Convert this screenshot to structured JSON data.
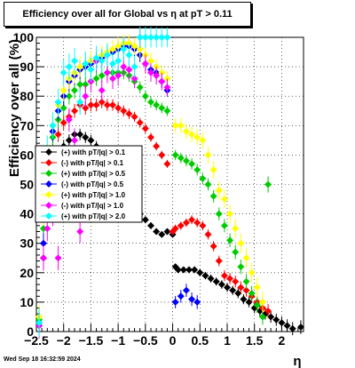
{
  "chart_data": {
    "type": "scatter",
    "title": "Efficiency over all for Global vs   η at pT > 0.11",
    "xlabel": "η",
    "ylabel": "Efficiency over all (%)",
    "xlim": [
      -2.5,
      2.4
    ],
    "ylim": [
      0,
      100
    ],
    "x_ticks": [
      "−2.5",
      "−2",
      "−1.5",
      "−1",
      "−0.5",
      "0",
      "0.5",
      "1",
      "1.5",
      "2"
    ],
    "y_ticks": [
      "0",
      "10",
      "20",
      "30",
      "40",
      "50",
      "60",
      "70",
      "80",
      "90",
      "100"
    ],
    "grid": true,
    "legend_position": "left-middle",
    "series": [
      {
        "name": "(+) with pT/|q| > 0.1",
        "color": "#000000",
        "points": [
          [
            -2.45,
            2
          ],
          [
            -2.37,
            25
          ],
          [
            -2.3,
            48
          ],
          [
            -2.2,
            57
          ],
          [
            -2.1,
            60
          ],
          [
            -2.0,
            63
          ],
          [
            -1.9,
            65
          ],
          [
            -1.8,
            67
          ],
          [
            -1.7,
            67
          ],
          [
            -1.6,
            66
          ],
          [
            -1.5,
            65
          ],
          [
            -1.4,
            63
          ],
          [
            -1.3,
            61
          ],
          [
            -1.2,
            58
          ],
          [
            -1.1,
            54
          ],
          [
            -1.0,
            51
          ],
          [
            -0.9,
            48
          ],
          [
            -0.8,
            45
          ],
          [
            -0.7,
            42
          ],
          [
            -0.6,
            40
          ],
          [
            -0.5,
            38
          ],
          [
            -0.4,
            36
          ],
          [
            -0.3,
            34
          ],
          [
            -0.2,
            33
          ],
          [
            -0.1,
            34
          ],
          [
            0.0,
            33
          ],
          [
            0.05,
            22
          ],
          [
            0.1,
            21
          ],
          [
            0.2,
            21
          ],
          [
            0.3,
            21
          ],
          [
            0.4,
            21
          ],
          [
            0.5,
            20
          ],
          [
            0.6,
            19
          ],
          [
            0.7,
            18
          ],
          [
            0.8,
            17
          ],
          [
            0.9,
            16
          ],
          [
            1.0,
            15
          ],
          [
            1.1,
            14
          ],
          [
            1.2,
            13
          ],
          [
            1.3,
            11
          ],
          [
            1.4,
            10
          ],
          [
            1.5,
            8
          ],
          [
            1.6,
            7
          ],
          [
            1.7,
            6
          ],
          [
            1.8,
            5
          ],
          [
            1.9,
            4
          ],
          [
            2.0,
            3
          ],
          [
            2.1,
            2
          ],
          [
            2.2,
            1
          ],
          [
            2.35,
            1.5
          ]
        ]
      },
      {
        "name": "(-) with pT/|q| > 0.1",
        "color": "#ff0000",
        "points": [
          [
            -2.45,
            3
          ],
          [
            -2.37,
            30
          ],
          [
            -2.3,
            52
          ],
          [
            -2.2,
            62
          ],
          [
            -2.1,
            67
          ],
          [
            -2.0,
            71
          ],
          [
            -1.9,
            73
          ],
          [
            -1.8,
            75
          ],
          [
            -1.7,
            77
          ],
          [
            -1.6,
            76
          ],
          [
            -1.5,
            77
          ],
          [
            -1.4,
            77
          ],
          [
            -1.3,
            78
          ],
          [
            -1.2,
            77
          ],
          [
            -1.1,
            77
          ],
          [
            -1.0,
            76
          ],
          [
            -0.9,
            75
          ],
          [
            -0.8,
            74
          ],
          [
            -0.7,
            73
          ],
          [
            -0.6,
            71
          ],
          [
            -0.5,
            69
          ],
          [
            -0.4,
            66
          ],
          [
            -0.3,
            63
          ],
          [
            -0.2,
            60
          ],
          [
            -0.1,
            57
          ],
          [
            0.0,
            34
          ],
          [
            0.05,
            35
          ],
          [
            0.15,
            36
          ],
          [
            0.25,
            37
          ],
          [
            0.35,
            38
          ],
          [
            0.45,
            37
          ],
          [
            0.55,
            36
          ],
          [
            0.65,
            33
          ],
          [
            0.75,
            29
          ],
          [
            0.85,
            24
          ],
          [
            0.95,
            19
          ],
          [
            1.05,
            18
          ],
          [
            1.15,
            17
          ],
          [
            1.25,
            15
          ],
          [
            1.35,
            14
          ],
          [
            1.45,
            12
          ],
          [
            1.55,
            10
          ],
          [
            1.65,
            8
          ],
          [
            1.75,
            7
          ]
        ]
      },
      {
        "name": "(+) with pT/|q| > 0.5",
        "color": "#00cc00",
        "points": [
          [
            -2.45,
            4
          ],
          [
            -2.37,
            35
          ],
          [
            -2.3,
            57
          ],
          [
            -2.2,
            66
          ],
          [
            -2.1,
            72
          ],
          [
            -2.0,
            76
          ],
          [
            -1.9,
            80
          ],
          [
            -1.8,
            82
          ],
          [
            -1.7,
            84
          ],
          [
            -1.6,
            84
          ],
          [
            -1.5,
            85
          ],
          [
            -1.4,
            86
          ],
          [
            -1.3,
            87
          ],
          [
            -1.2,
            88
          ],
          [
            -1.1,
            88
          ],
          [
            -1.0,
            88
          ],
          [
            -0.9,
            88
          ],
          [
            -0.8,
            87
          ],
          [
            -0.7,
            85
          ],
          [
            -0.6,
            83
          ],
          [
            -0.5,
            80
          ],
          [
            -0.4,
            78
          ],
          [
            -0.3,
            77
          ],
          [
            -0.2,
            76
          ],
          [
            -0.1,
            75
          ],
          [
            0.05,
            60
          ],
          [
            0.15,
            59
          ],
          [
            0.25,
            58
          ],
          [
            0.35,
            57
          ],
          [
            0.45,
            55
          ],
          [
            0.55,
            52
          ],
          [
            0.65,
            50
          ],
          [
            0.75,
            46
          ],
          [
            0.85,
            40
          ],
          [
            0.95,
            36
          ],
          [
            1.05,
            31
          ],
          [
            1.15,
            27
          ],
          [
            1.25,
            22
          ],
          [
            1.35,
            17
          ],
          [
            1.45,
            13
          ],
          [
            1.55,
            9
          ],
          [
            1.65,
            5
          ],
          [
            1.75,
            50
          ]
        ]
      },
      {
        "name": "(-) with pT/|q| > 0.5",
        "color": "#0000ff",
        "points": [
          [
            -2.45,
            3
          ],
          [
            -2.37,
            30
          ],
          [
            -2.3,
            58
          ],
          [
            -2.2,
            68
          ],
          [
            -2.1,
            75
          ],
          [
            -2.0,
            80
          ],
          [
            -1.9,
            85
          ],
          [
            -1.8,
            87
          ],
          [
            -1.7,
            89
          ],
          [
            -1.6,
            90
          ],
          [
            -1.5,
            91
          ],
          [
            -1.4,
            92
          ],
          [
            -1.3,
            93
          ],
          [
            -1.2,
            94
          ],
          [
            -1.1,
            95
          ],
          [
            -1.0,
            96
          ],
          [
            -0.9,
            97
          ],
          [
            -0.8,
            97
          ],
          [
            -0.7,
            96
          ],
          [
            -0.6,
            94
          ],
          [
            -0.5,
            91
          ],
          [
            -0.4,
            89
          ],
          [
            -0.3,
            88
          ],
          [
            -0.2,
            85
          ],
          [
            -0.1,
            82
          ],
          [
            0.05,
            10
          ],
          [
            0.15,
            12
          ],
          [
            0.25,
            14
          ],
          [
            0.35,
            11
          ],
          [
            0.45,
            10
          ]
        ]
      },
      {
        "name": "(+) with pT/|q| > 1.0",
        "color": "#ffff00",
        "points": [
          [
            -2.45,
            5
          ],
          [
            -2.37,
            40
          ],
          [
            -2.3,
            60
          ],
          [
            -2.2,
            70
          ],
          [
            -2.1,
            77
          ],
          [
            -2.0,
            82
          ],
          [
            -1.9,
            86
          ],
          [
            -1.8,
            88
          ],
          [
            -1.7,
            90
          ],
          [
            -1.6,
            91
          ],
          [
            -1.5,
            92
          ],
          [
            -1.4,
            93
          ],
          [
            -1.3,
            94
          ],
          [
            -1.2,
            95
          ],
          [
            -1.1,
            96
          ],
          [
            -1.0,
            97
          ],
          [
            -0.9,
            98
          ],
          [
            -0.8,
            98
          ],
          [
            -0.7,
            97
          ],
          [
            -0.6,
            96
          ],
          [
            -0.5,
            94
          ],
          [
            -0.4,
            92
          ],
          [
            -0.3,
            90
          ],
          [
            -0.2,
            88
          ],
          [
            -0.1,
            86
          ],
          [
            0.05,
            70
          ],
          [
            0.15,
            70
          ],
          [
            0.25,
            68
          ],
          [
            0.35,
            67
          ],
          [
            0.45,
            66
          ],
          [
            0.55,
            65
          ],
          [
            0.65,
            60
          ],
          [
            0.75,
            55
          ],
          [
            0.85,
            48
          ],
          [
            0.95,
            45
          ],
          [
            1.05,
            40
          ],
          [
            1.15,
            35
          ],
          [
            1.25,
            30
          ],
          [
            1.35,
            25
          ],
          [
            1.45,
            20
          ],
          [
            1.55,
            15
          ],
          [
            1.65,
            10
          ]
        ]
      },
      {
        "name": "(-) with pT/|q| > 1.0",
        "color": "#ff00ff",
        "points": [
          [
            -2.45,
            2
          ],
          [
            -2.37,
            25
          ],
          [
            -2.3,
            35
          ],
          [
            -2.2,
            40
          ],
          [
            -2.1,
            25
          ],
          [
            -2.0,
            58
          ],
          [
            -1.9,
            72
          ],
          [
            -1.8,
            65
          ],
          [
            -1.7,
            34
          ],
          [
            -1.6,
            80
          ],
          [
            -1.5,
            85
          ],
          [
            -1.4,
            92
          ],
          [
            -1.3,
            82
          ],
          [
            -1.2,
            88
          ],
          [
            -1.1,
            86
          ],
          [
            -1.0,
            87
          ],
          [
            -0.9,
            90
          ],
          [
            -0.8,
            89
          ],
          [
            -0.7,
            86
          ],
          [
            -0.6,
            100
          ],
          [
            -0.5,
            91
          ],
          [
            -0.4,
            88
          ],
          [
            -0.3,
            87
          ],
          [
            -0.2,
            85
          ],
          [
            -0.1,
            83
          ]
        ]
      },
      {
        "name": "(+) with pT/|q| > 2.0",
        "color": "#00ffff",
        "points": [
          [
            -2.45,
            3
          ],
          [
            -2.37,
            45
          ],
          [
            -2.3,
            62
          ],
          [
            -2.2,
            70
          ],
          [
            -2.1,
            78
          ],
          [
            -2.0,
            88
          ],
          [
            -1.9,
            90
          ],
          [
            -1.8,
            92
          ],
          [
            -1.7,
            78
          ],
          [
            -1.6,
            91
          ],
          [
            -1.5,
            89
          ],
          [
            -1.4,
            93
          ],
          [
            -1.3,
            92
          ],
          [
            -1.2,
            94
          ],
          [
            -1.1,
            91
          ],
          [
            -1.0,
            92
          ],
          [
            -0.9,
            96
          ],
          [
            -0.8,
            94
          ],
          [
            -0.7,
            90
          ],
          [
            -0.6,
            100
          ],
          [
            -0.5,
            100
          ],
          [
            -0.4,
            100
          ],
          [
            -0.3,
            100
          ],
          [
            -0.2,
            100
          ],
          [
            -0.1,
            100
          ]
        ]
      }
    ]
  },
  "footer": {
    "date": "Wed Sep 18 16:32:59 2024"
  }
}
